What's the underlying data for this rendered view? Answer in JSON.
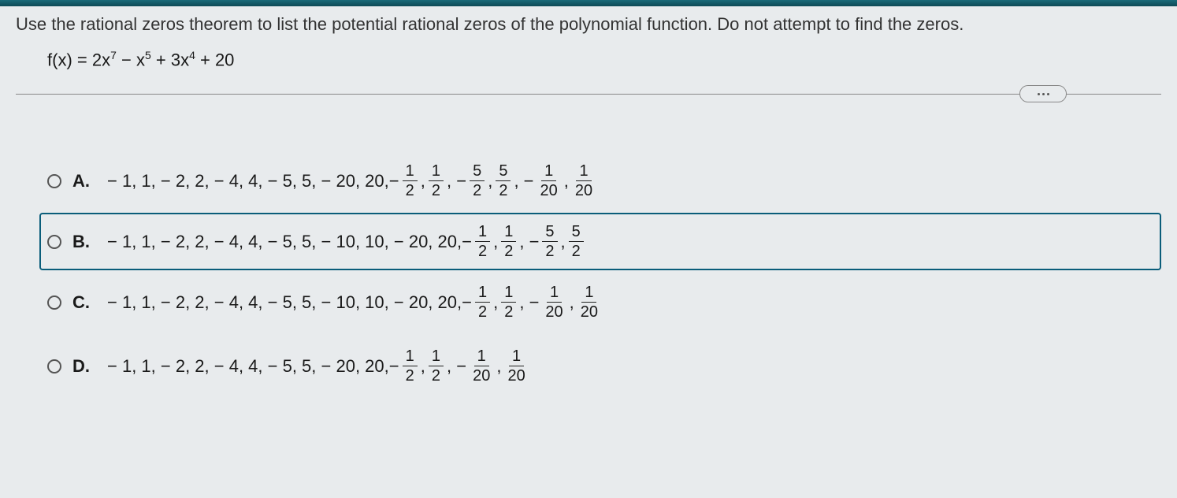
{
  "colors": {
    "page_bg": "#e8ebed",
    "text": "#1a1a1a",
    "top_bar_start": "#1a6b7a",
    "top_bar_end": "#0d4a56",
    "divider": "#888888",
    "selected_border": "#0a5d7a",
    "radio_border": "#555555",
    "frac_bar": "#222222"
  },
  "prompt": "Use the rational zeros theorem to list the potential rational zeros of the polynomial function. Do not attempt to find the zeros.",
  "formula": {
    "lhs": "f(x) = ",
    "terms": [
      {
        "coef": "2x",
        "exp": "7"
      },
      {
        "coef": " − x",
        "exp": "5"
      },
      {
        "coef": " + 3x",
        "exp": "4"
      },
      {
        "coef": " + 20",
        "exp": ""
      }
    ]
  },
  "options": [
    {
      "letter": "A.",
      "selected": false,
      "prefix": "− 1, 1, − 2, 2, − 4, 4, − 5, 5, − 20, 20, ",
      "fracs": [
        {
          "sign": "− ",
          "num": "1",
          "den": "2"
        },
        {
          "sep": ", ",
          "num": "1",
          "den": "2"
        },
        {
          "sep": ", − ",
          "num": "5",
          "den": "2"
        },
        {
          "sep": ", ",
          "num": "5",
          "den": "2"
        },
        {
          "sep": ", − ",
          "num": "1",
          "den": "20"
        },
        {
          "sep": ", ",
          "num": "1",
          "den": "20"
        }
      ]
    },
    {
      "letter": "B.",
      "selected": true,
      "prefix": "− 1, 1, − 2, 2, − 4, 4, − 5, 5, − 10, 10, − 20, 20, ",
      "fracs": [
        {
          "sign": "− ",
          "num": "1",
          "den": "2"
        },
        {
          "sep": ", ",
          "num": "1",
          "den": "2"
        },
        {
          "sep": ", − ",
          "num": "5",
          "den": "2"
        },
        {
          "sep": ", ",
          "num": "5",
          "den": "2"
        }
      ]
    },
    {
      "letter": "C.",
      "selected": false,
      "prefix": "− 1, 1, − 2, 2, − 4, 4, − 5, 5, − 10, 10, − 20, 20, ",
      "fracs": [
        {
          "sign": "− ",
          "num": "1",
          "den": "2"
        },
        {
          "sep": ", ",
          "num": "1",
          "den": "2"
        },
        {
          "sep": ", − ",
          "num": "1",
          "den": "20"
        },
        {
          "sep": ", ",
          "num": "1",
          "den": "20"
        }
      ]
    },
    {
      "letter": "D.",
      "selected": false,
      "prefix": "− 1, 1, − 2, 2, − 4, 4, − 5, 5, − 20, 20, ",
      "fracs": [
        {
          "sign": "− ",
          "num": "1",
          "den": "2"
        },
        {
          "sep": ", ",
          "num": "1",
          "den": "2"
        },
        {
          "sep": ", − ",
          "num": "1",
          "den": "20"
        },
        {
          "sep": ", ",
          "num": "1",
          "den": "20"
        }
      ]
    }
  ]
}
